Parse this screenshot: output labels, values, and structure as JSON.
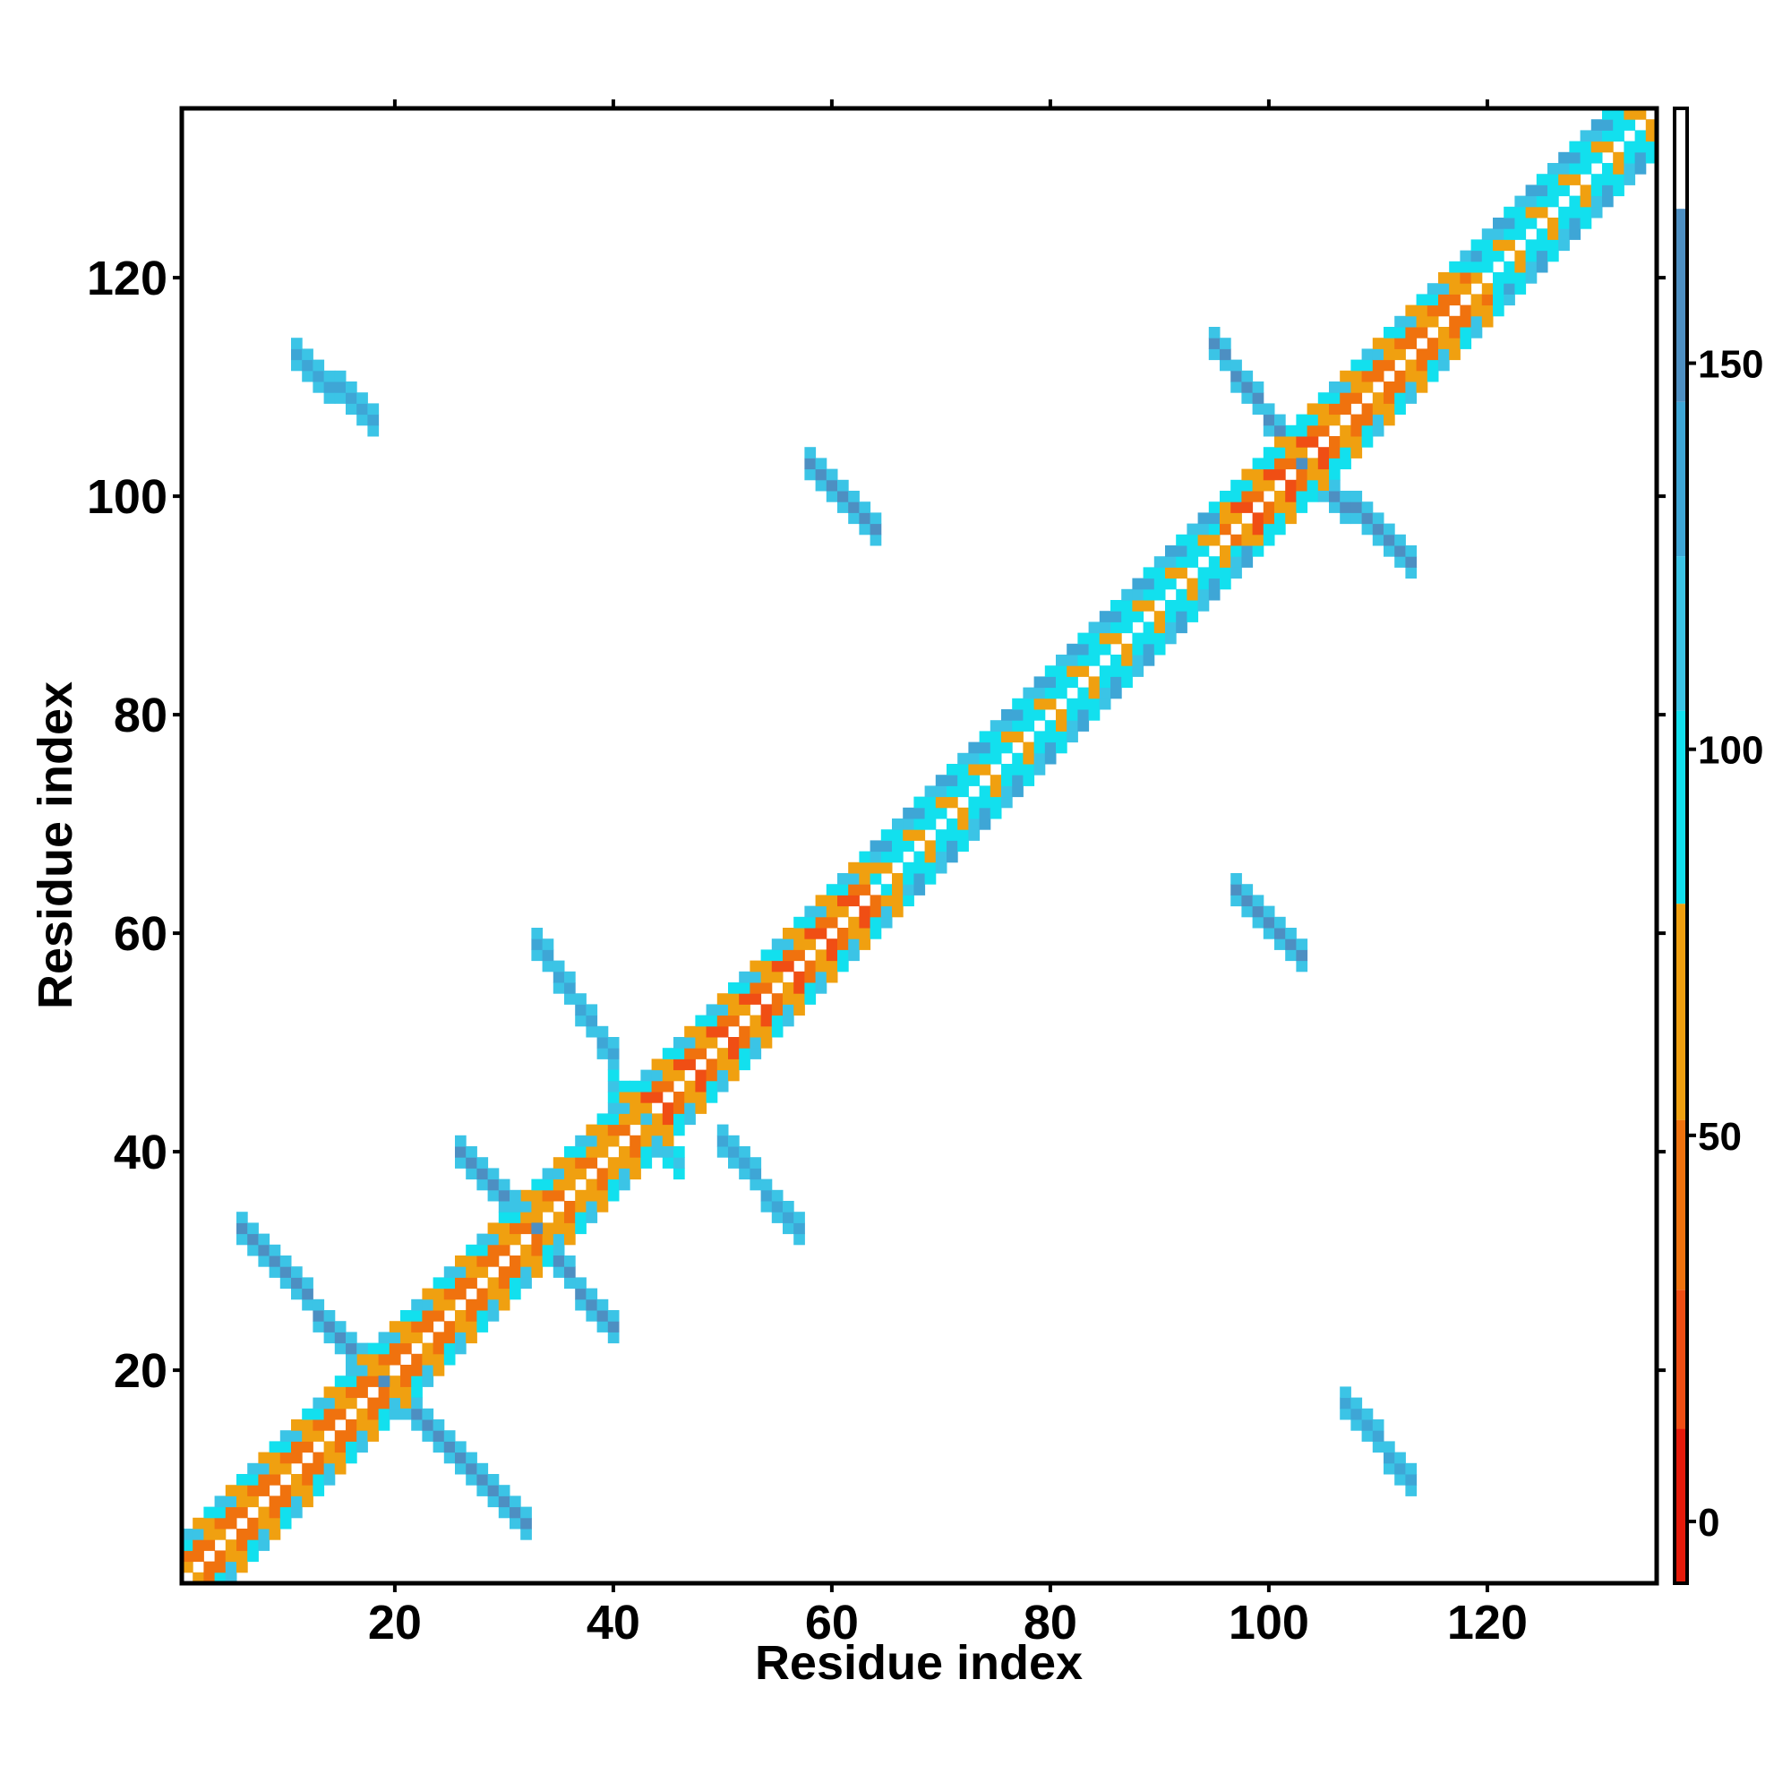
{
  "chart_data": {
    "type": "heatmap",
    "title": "",
    "xlabel": "Residue index",
    "ylabel": "Residue index",
    "xlim": [
      1,
      135
    ],
    "ylim": [
      1,
      135
    ],
    "x_ticks": [
      "20",
      "40",
      "60",
      "80",
      "100",
      "120"
    ],
    "y_ticks": [
      "20",
      "40",
      "60",
      "80",
      "100",
      "120"
    ],
    "colorbar": {
      "range": [
        -8,
        183
      ],
      "ticks": [
        "0",
        "50",
        "100",
        "150"
      ],
      "bands": [
        {
          "from": -8,
          "to": 12,
          "color": "#e51a0a"
        },
        {
          "from": 12,
          "to": 30,
          "color": "#f04e14"
        },
        {
          "from": 30,
          "to": 52,
          "color": "#f0720e"
        },
        {
          "from": 52,
          "to": 80,
          "color": "#f0a010"
        },
        {
          "from": 80,
          "to": 105,
          "color": "#12e0ee"
        },
        {
          "from": 105,
          "to": 125,
          "color": "#3bc4e6"
        },
        {
          "from": 125,
          "to": 145,
          "color": "#3ea6d6"
        },
        {
          "from": 145,
          "to": 170,
          "color": "#4d8fc2"
        },
        {
          "from": 170,
          "to": 183,
          "color": "#ffffff"
        }
      ]
    },
    "bands_along_diagonal": [
      {
        "x_range": [
          1,
          19
        ],
        "value": 30
      },
      {
        "x_range": [
          19,
          31
        ],
        "value": 30
      },
      {
        "x_range": [
          31,
          42
        ],
        "value": 35
      },
      {
        "x_range": [
          42,
          63
        ],
        "value": 25
      },
      {
        "x_range": [
          63,
          95
        ],
        "value": 60
      },
      {
        "x_range": [
          95,
          105
        ],
        "value": 20
      },
      {
        "x_range": [
          105,
          118
        ],
        "value": 30
      },
      {
        "x_range": [
          116,
          135
        ],
        "value": 60
      }
    ],
    "antiparallel_contacts": [
      {
        "x_range": [
          6,
          19
        ],
        "y_range": [
          19,
          33
        ],
        "value": 150
      },
      {
        "x_range": [
          19,
          32
        ],
        "y_range": [
          6,
          19
        ],
        "value": 150
      },
      {
        "x_range": [
          26,
          33
        ],
        "y_range": [
          33,
          40
        ],
        "value": 145
      },
      {
        "x_range": [
          33,
          40
        ],
        "y_range": [
          24,
          32
        ],
        "value": 145
      },
      {
        "x_range": [
          33,
          40
        ],
        "y_range": [
          49,
          59
        ],
        "value": 140
      },
      {
        "x_range": [
          50,
          57
        ],
        "y_range": [
          33,
          41
        ],
        "value": 140
      },
      {
        "x_range": [
          40,
          46
        ],
        "y_range": [
          39,
          46
        ],
        "value": 120
      },
      {
        "x_range": [
          95,
          103
        ],
        "y_range": [
          103,
          114
        ],
        "value": 150
      },
      {
        "x_range": [
          103,
          113
        ],
        "y_range": [
          94,
          103
        ],
        "value": 150
      },
      {
        "x_range": [
          58,
          64
        ],
        "y_range": [
          97,
          103
        ],
        "value": 145
      },
      {
        "x_range": [
          97,
          103
        ],
        "y_range": [
          58,
          64
        ],
        "value": 145
      },
      {
        "x_range": [
          11,
          18
        ],
        "y_range": [
          107,
          113
        ],
        "value": 140
      },
      {
        "x_range": [
          107,
          113
        ],
        "y_range": [
          10,
          17
        ],
        "value": 140
      }
    ]
  }
}
